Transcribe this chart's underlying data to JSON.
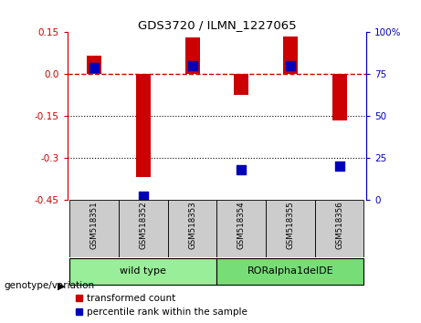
{
  "title": "GDS3720 / ILMN_1227065",
  "samples": [
    "GSM518351",
    "GSM518352",
    "GSM518353",
    "GSM518354",
    "GSM518355",
    "GSM518356"
  ],
  "red_values": [
    0.065,
    -0.37,
    0.132,
    -0.075,
    0.135,
    -0.165
  ],
  "blue_values_pct": [
    79,
    2,
    80,
    18,
    80,
    20
  ],
  "ylim_red": [
    -0.45,
    0.15
  ],
  "ylim_blue": [
    0,
    100
  ],
  "yticks_red": [
    0.15,
    0.0,
    -0.15,
    -0.3,
    -0.45
  ],
  "yticks_blue": [
    100,
    75,
    50,
    25,
    0
  ],
  "dotted_lines": [
    -0.15,
    -0.3
  ],
  "group1_label": "wild type",
  "group2_label": "RORalpha1delDE",
  "group_label": "genotype/variation",
  "legend1_label": "transformed count",
  "legend2_label": "percentile rank within the sample",
  "red_color": "#cc0000",
  "blue_color": "#0000bb",
  "group1_color": "#99ee99",
  "group2_color": "#77dd77",
  "bar_width": 0.3,
  "blue_marker_size": 60,
  "bg_color": "#ffffff",
  "tick_fontsize": 7.5,
  "label_color_gray": "#888888"
}
